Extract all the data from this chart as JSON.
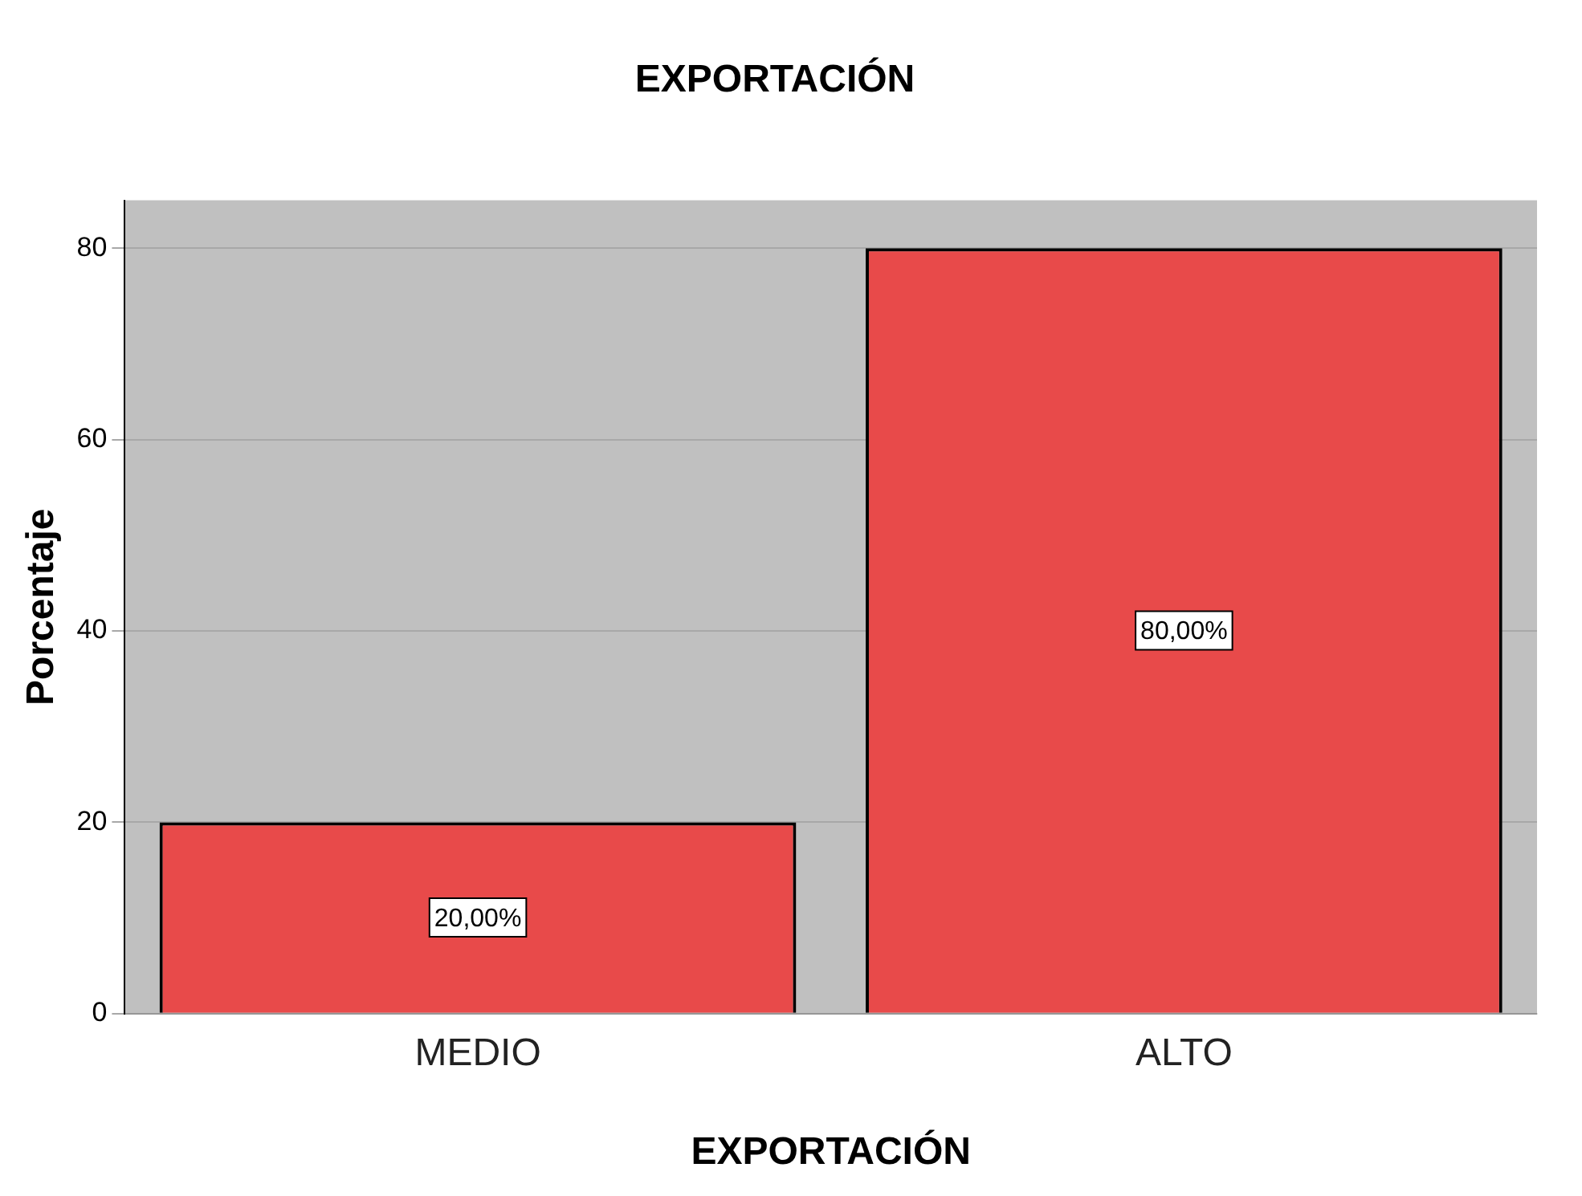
{
  "chart_data": {
    "type": "bar",
    "title": "EXPORTACIÓN",
    "xlabel": "EXPORTACIÓN",
    "ylabel": "Porcentaje",
    "categories": [
      "MEDIO",
      "ALTO"
    ],
    "values": [
      20,
      80
    ],
    "color": "#e84a4a",
    "value_labels": [
      "20,00%",
      "80,00%"
    ],
    "ylim": [
      0,
      85
    ],
    "yticks": [
      0,
      20,
      40,
      60,
      80
    ],
    "grid": "y",
    "legend": false
  }
}
